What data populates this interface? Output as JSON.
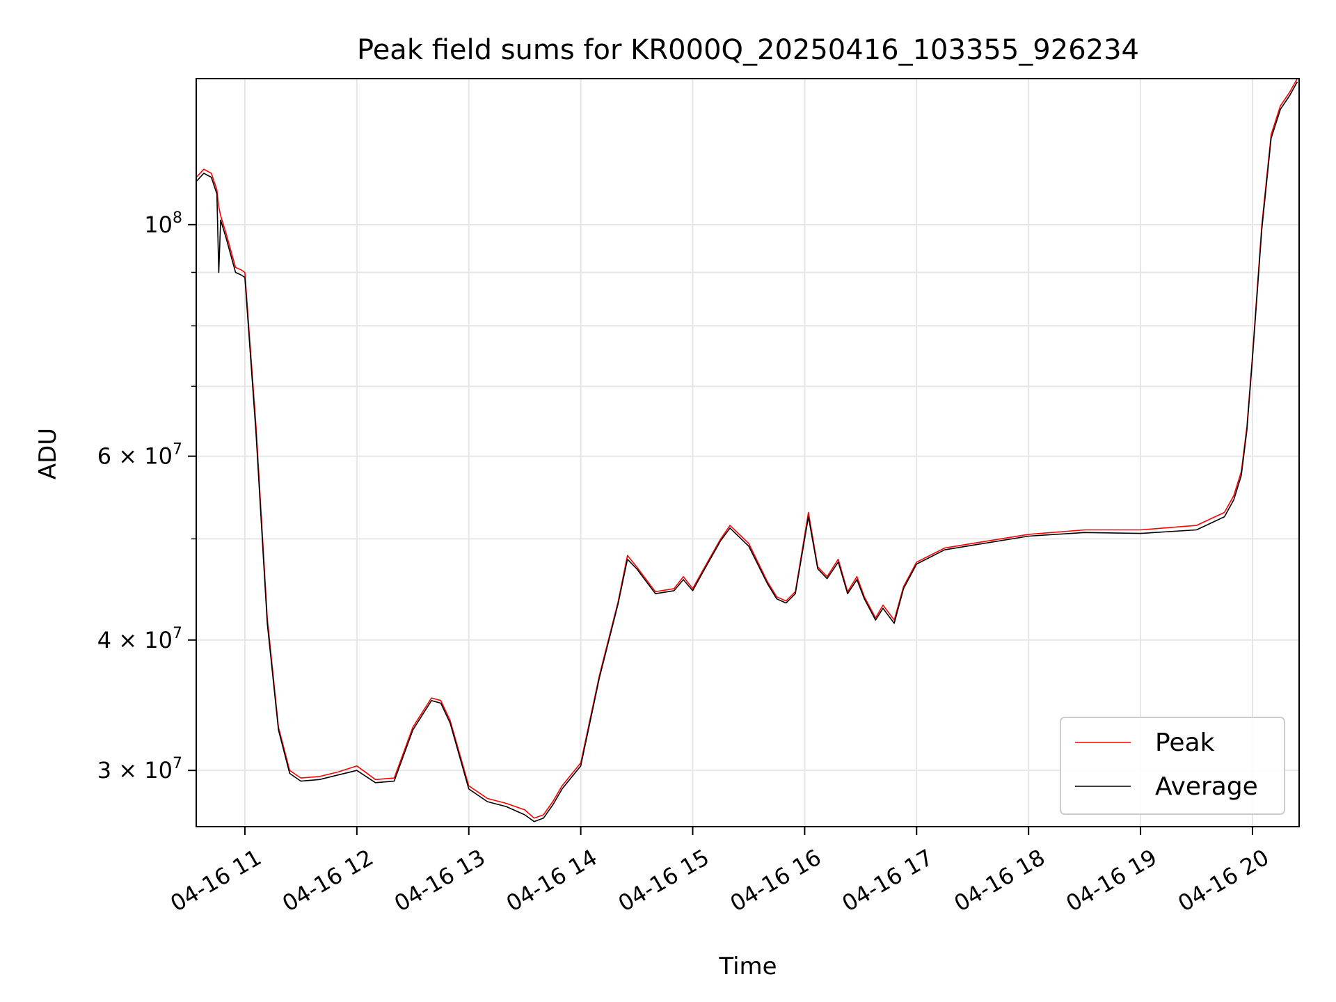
{
  "chart_data": {
    "type": "line",
    "title": "Peak field sums for KR000Q_20250416_103355_926234",
    "xlabel": "Time",
    "ylabel": "ADU",
    "y_scale": "log",
    "xlim": [
      "2025-04-16T10:33:55",
      "2025-04-16T20:25:00"
    ],
    "ylim": [
      26500000,
      138000000
    ],
    "grid": true,
    "legend_position": "lower-right",
    "x_ticks": [
      {
        "t": "2025-04-16T11:00",
        "label": "04-16 11"
      },
      {
        "t": "2025-04-16T12:00",
        "label": "04-16 12"
      },
      {
        "t": "2025-04-16T13:00",
        "label": "04-16 13"
      },
      {
        "t": "2025-04-16T14:00",
        "label": "04-16 14"
      },
      {
        "t": "2025-04-16T15:00",
        "label": "04-16 15"
      },
      {
        "t": "2025-04-16T16:00",
        "label": "04-16 16"
      },
      {
        "t": "2025-04-16T17:00",
        "label": "04-16 17"
      },
      {
        "t": "2025-04-16T18:00",
        "label": "04-16 18"
      },
      {
        "t": "2025-04-16T19:00",
        "label": "04-16 19"
      },
      {
        "t": "2025-04-16T20:00",
        "label": "04-16 20"
      }
    ],
    "y_major_ticks": [
      {
        "value": 30000000,
        "mantissa": "3",
        "exponent": "7"
      },
      {
        "value": 40000000,
        "mantissa": "4",
        "exponent": "7"
      },
      {
        "value": 60000000,
        "mantissa": "6",
        "exponent": "7"
      },
      {
        "value": 100000000,
        "mantissa": "",
        "exponent": "8"
      }
    ],
    "y_minor_ticks": [
      50000000,
      70000000,
      80000000,
      90000000
    ],
    "series": [
      {
        "name": "Peak",
        "color": "#ff0000",
        "x": [
          "2025-04-16T10:34",
          "2025-04-16T10:38",
          "2025-04-16T10:42",
          "2025-04-16T10:45",
          "2025-04-16T10:46",
          "2025-04-16T10:47",
          "2025-04-16T10:50",
          "2025-04-16T10:55",
          "2025-04-16T10:58",
          "2025-04-16T11:00",
          "2025-04-16T11:06",
          "2025-04-16T11:12",
          "2025-04-16T11:18",
          "2025-04-16T11:24",
          "2025-04-16T11:30",
          "2025-04-16T11:40",
          "2025-04-16T11:50",
          "2025-04-16T12:00",
          "2025-04-16T12:10",
          "2025-04-16T12:20",
          "2025-04-16T12:30",
          "2025-04-16T12:40",
          "2025-04-16T12:45",
          "2025-04-16T12:50",
          "2025-04-16T13:00",
          "2025-04-16T13:10",
          "2025-04-16T13:20",
          "2025-04-16T13:30",
          "2025-04-16T13:35",
          "2025-04-16T13:40",
          "2025-04-16T13:45",
          "2025-04-16T13:50",
          "2025-04-16T14:00",
          "2025-04-16T14:10",
          "2025-04-16T14:20",
          "2025-04-16T14:25",
          "2025-04-16T14:30",
          "2025-04-16T14:40",
          "2025-04-16T14:50",
          "2025-04-16T14:55",
          "2025-04-16T15:00",
          "2025-04-16T15:05",
          "2025-04-16T15:15",
          "2025-04-16T15:20",
          "2025-04-16T15:30",
          "2025-04-16T15:40",
          "2025-04-16T15:45",
          "2025-04-16T15:50",
          "2025-04-16T15:55",
          "2025-04-16T16:02",
          "2025-04-16T16:07",
          "2025-04-16T16:12",
          "2025-04-16T16:18",
          "2025-04-16T16:23",
          "2025-04-16T16:28",
          "2025-04-16T16:32",
          "2025-04-16T16:38",
          "2025-04-16T16:42",
          "2025-04-16T16:48",
          "2025-04-16T16:53",
          "2025-04-16T17:00",
          "2025-04-16T17:15",
          "2025-04-16T17:30",
          "2025-04-16T18:00",
          "2025-04-16T18:30",
          "2025-04-16T19:00",
          "2025-04-16T19:30",
          "2025-04-16T19:45",
          "2025-04-16T19:50",
          "2025-04-16T19:54",
          "2025-04-16T19:57",
          "2025-04-16T20:00",
          "2025-04-16T20:05",
          "2025-04-16T20:10",
          "2025-04-16T20:15",
          "2025-04-16T20:20",
          "2025-04-16T20:24"
        ],
        "y": [
          111000000,
          113000000,
          112000000,
          108000000,
          104000000,
          102000000,
          98000000,
          91000000,
          90500000,
          90000000,
          64000000,
          42000000,
          33000000,
          30000000,
          29500000,
          29600000,
          29900000,
          30300000,
          29400000,
          29500000,
          33000000,
          35200000,
          35000000,
          33500000,
          29000000,
          28200000,
          27900000,
          27500000,
          27000000,
          27200000,
          28000000,
          29000000,
          30500000,
          37000000,
          43500000,
          48200000,
          47000000,
          44500000,
          44800000,
          46000000,
          44800000,
          46500000,
          50000000,
          51500000,
          49500000,
          45500000,
          44000000,
          43600000,
          44500000,
          53000000,
          47000000,
          46000000,
          47800000,
          44500000,
          46000000,
          44000000,
          42000000,
          43200000,
          41800000,
          45000000,
          47500000,
          49000000,
          49500000,
          50500000,
          51000000,
          51000000,
          51500000,
          53000000,
          55000000,
          58000000,
          64000000,
          75000000,
          100000000,
          122000000,
          130000000,
          134000000,
          138000000
        ]
      },
      {
        "name": "Average",
        "color": "#000000",
        "x": [
          "2025-04-16T10:34",
          "2025-04-16T10:38",
          "2025-04-16T10:42",
          "2025-04-16T10:45",
          "2025-04-16T10:46",
          "2025-04-16T10:47",
          "2025-04-16T10:50",
          "2025-04-16T10:55",
          "2025-04-16T10:58",
          "2025-04-16T11:00",
          "2025-04-16T11:06",
          "2025-04-16T11:12",
          "2025-04-16T11:18",
          "2025-04-16T11:24",
          "2025-04-16T11:30",
          "2025-04-16T11:40",
          "2025-04-16T11:50",
          "2025-04-16T12:00",
          "2025-04-16T12:10",
          "2025-04-16T12:20",
          "2025-04-16T12:30",
          "2025-04-16T12:40",
          "2025-04-16T12:45",
          "2025-04-16T12:50",
          "2025-04-16T13:00",
          "2025-04-16T13:10",
          "2025-04-16T13:20",
          "2025-04-16T13:30",
          "2025-04-16T13:35",
          "2025-04-16T13:40",
          "2025-04-16T13:45",
          "2025-04-16T13:50",
          "2025-04-16T14:00",
          "2025-04-16T14:10",
          "2025-04-16T14:20",
          "2025-04-16T14:25",
          "2025-04-16T14:30",
          "2025-04-16T14:40",
          "2025-04-16T14:50",
          "2025-04-16T14:55",
          "2025-04-16T15:00",
          "2025-04-16T15:05",
          "2025-04-16T15:15",
          "2025-04-16T15:20",
          "2025-04-16T15:30",
          "2025-04-16T15:40",
          "2025-04-16T15:45",
          "2025-04-16T15:50",
          "2025-04-16T15:55",
          "2025-04-16T16:02",
          "2025-04-16T16:07",
          "2025-04-16T16:12",
          "2025-04-16T16:18",
          "2025-04-16T16:23",
          "2025-04-16T16:28",
          "2025-04-16T16:32",
          "2025-04-16T16:38",
          "2025-04-16T16:42",
          "2025-04-16T16:48",
          "2025-04-16T16:53",
          "2025-04-16T17:00",
          "2025-04-16T17:15",
          "2025-04-16T17:30",
          "2025-04-16T18:00",
          "2025-04-16T18:30",
          "2025-04-16T19:00",
          "2025-04-16T19:30",
          "2025-04-16T19:45",
          "2025-04-16T19:50",
          "2025-04-16T19:54",
          "2025-04-16T19:57",
          "2025-04-16T20:00",
          "2025-04-16T20:05",
          "2025-04-16T20:10",
          "2025-04-16T20:15",
          "2025-04-16T20:20",
          "2025-04-16T20:24"
        ],
        "y": [
          110000000,
          112000000,
          111000000,
          107000000,
          90000000,
          101000000,
          97000000,
          90000000,
          89500000,
          89000000,
          63000000,
          41500000,
          32800000,
          29800000,
          29300000,
          29400000,
          29700000,
          30000000,
          29200000,
          29300000,
          32800000,
          35000000,
          34800000,
          33300000,
          28800000,
          28000000,
          27700000,
          27200000,
          26800000,
          27000000,
          27800000,
          28800000,
          30300000,
          36800000,
          43300000,
          47800000,
          46800000,
          44300000,
          44600000,
          45700000,
          44600000,
          46300000,
          49800000,
          51200000,
          49200000,
          45300000,
          43800000,
          43400000,
          44300000,
          52500000,
          46800000,
          45800000,
          47500000,
          44300000,
          45700000,
          43800000,
          41800000,
          42900000,
          41500000,
          44800000,
          47300000,
          48800000,
          49300000,
          50300000,
          50700000,
          50600000,
          51000000,
          52500000,
          54500000,
          57500000,
          63500000,
          74500000,
          99000000,
          121000000,
          129000000,
          133000000,
          137000000
        ]
      }
    ]
  }
}
